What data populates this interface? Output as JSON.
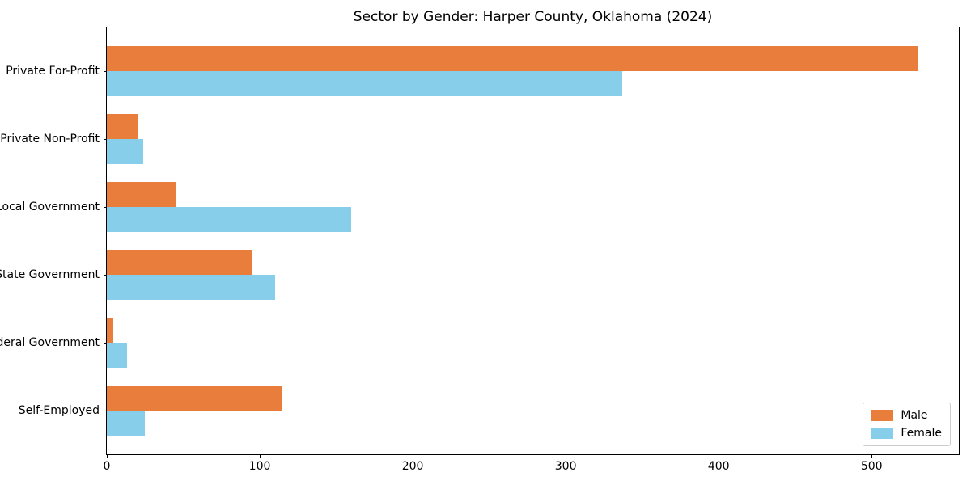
{
  "chart_data": {
    "type": "bar",
    "orientation": "horizontal",
    "title": "Sector by Gender: Harper County, Oklahoma (2024)",
    "categories": [
      "Private For-Profit",
      "Private Non-Profit",
      "Local Government",
      "State Government",
      "Federal Government",
      "Self-Employed"
    ],
    "series": [
      {
        "name": "Male",
        "color": "#E87D3C",
        "values": [
          530,
          20,
          45,
          95,
          4,
          114
        ]
      },
      {
        "name": "Female",
        "color": "#87CEEB",
        "values": [
          337,
          24,
          160,
          110,
          13,
          25
        ]
      }
    ],
    "xlabel": "",
    "ylabel": "",
    "xlim": [
      0,
      557
    ],
    "xticks": [
      0,
      100,
      200,
      300,
      400,
      500
    ],
    "grid": false,
    "legend_position": "lower right",
    "axis_color": "#000000"
  }
}
